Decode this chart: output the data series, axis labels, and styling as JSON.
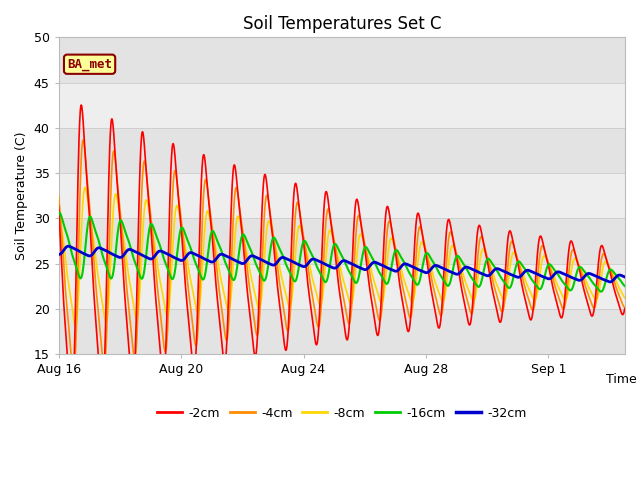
{
  "title": "Soil Temperatures Set C",
  "xlabel": "Time",
  "ylabel": "Soil Temperature (C)",
  "ylim": [
    15,
    50
  ],
  "xlim_days": [
    0,
    18.5
  ],
  "x_tick_labels": [
    "Aug 16",
    "Aug 20",
    "Aug 24",
    "Aug 28",
    "Sep 1"
  ],
  "x_tick_positions": [
    0,
    4,
    8,
    12,
    16
  ],
  "line_colors": {
    "-2cm": "#FF0000",
    "-4cm": "#FF8C00",
    "-8cm": "#FFD700",
    "-16cm": "#00CC00",
    "-32cm": "#0000CD"
  },
  "line_widths": {
    "-2cm": 1.2,
    "-4cm": 1.2,
    "-8cm": 1.2,
    "-16cm": 1.5,
    "-32cm": 2.0
  },
  "legend_labels": [
    "-2cm",
    "-4cm",
    "-8cm",
    "-16cm",
    "-32cm"
  ],
  "ba_met_label": "BA_met",
  "grid_color": "#CCCCCC",
  "plot_bg": "#F5F5F5",
  "fig_bg": "#FFFFFF",
  "annotation_bg": "#FFFF99",
  "annotation_border": "#8B0000"
}
